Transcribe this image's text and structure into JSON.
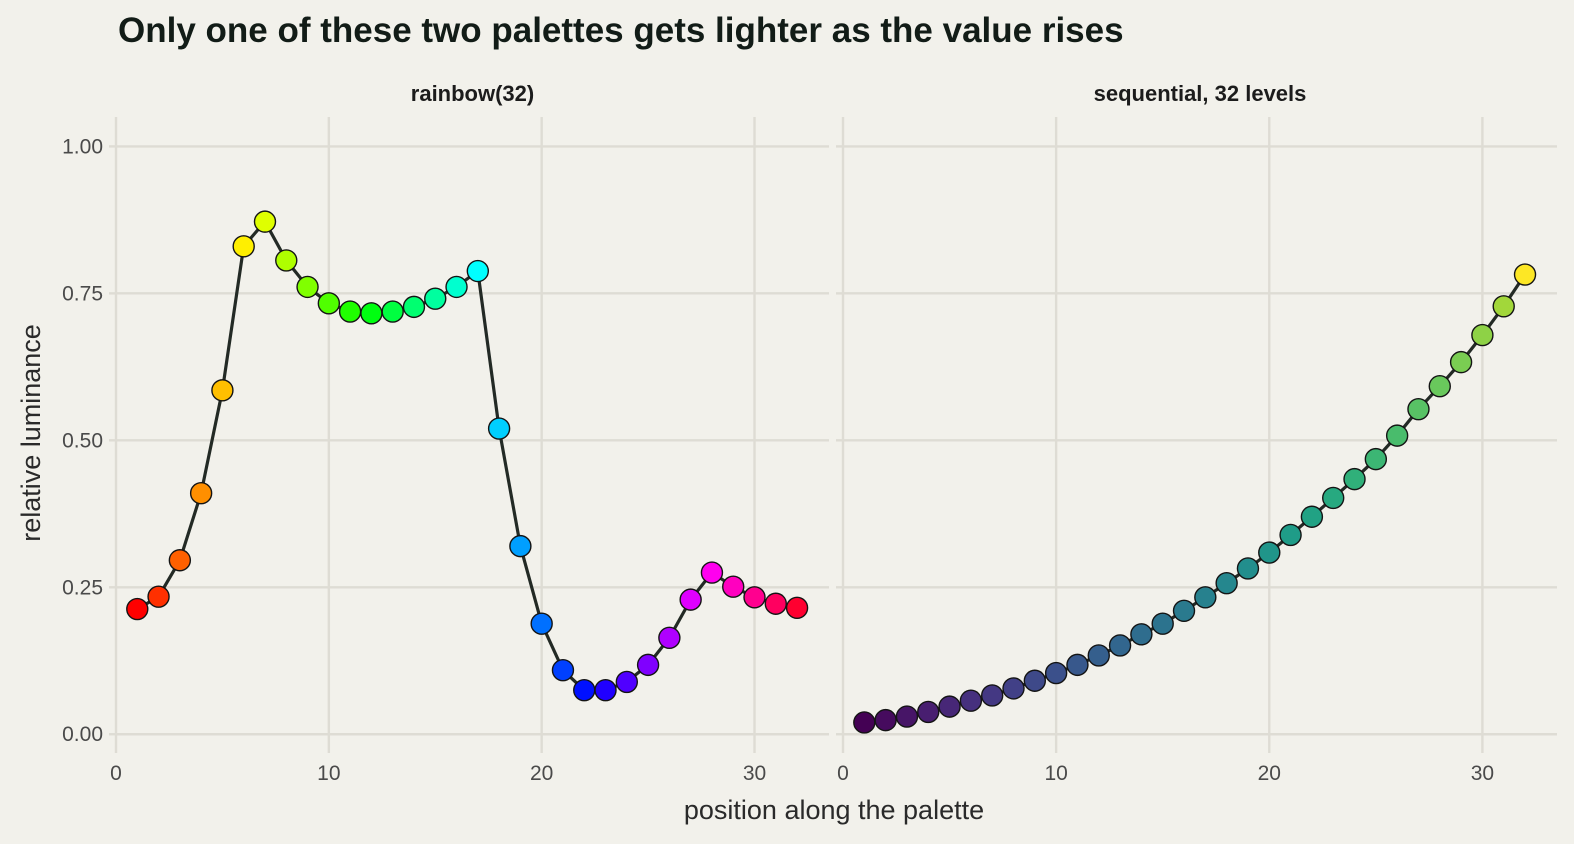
{
  "chart_data": {
    "type": "scatter",
    "title": "Only one of these two palettes gets lighter as the value rises",
    "xlabel": "position along the palette",
    "ylabel": "relative luminance",
    "xlim": [
      0,
      33.5
    ],
    "ylim": [
      -0.02,
      1.05
    ],
    "x_ticks": [
      0,
      10,
      20,
      30
    ],
    "y_ticks": [
      0,
      0.25,
      0.5,
      0.75,
      1.0
    ],
    "x_tick_labels": [
      "0",
      "10",
      "20",
      "30"
    ],
    "y_tick_labels": [
      "0.00",
      "0.25",
      "0.50",
      "0.75",
      "1.00"
    ],
    "grid": true,
    "legend": "none",
    "panels": [
      {
        "label": "rainbow(32)",
        "x": [
          1,
          2,
          3,
          4,
          5,
          6,
          7,
          8,
          9,
          10,
          11,
          12,
          13,
          14,
          15,
          16,
          17,
          18,
          19,
          20,
          21,
          22,
          23,
          24,
          25,
          26,
          27,
          28,
          29,
          30,
          31,
          32
        ],
        "y": [
          0.213,
          0.234,
          0.296,
          0.41,
          0.585,
          0.83,
          0.872,
          0.806,
          0.761,
          0.733,
          0.719,
          0.716,
          0.719,
          0.727,
          0.741,
          0.761,
          0.788,
          0.52,
          0.32,
          0.188,
          0.109,
          0.075,
          0.075,
          0.089,
          0.118,
          0.164,
          0.229,
          0.275,
          0.251,
          0.233,
          0.222,
          0.215
        ],
        "colors": [
          "#FF0000",
          "#FF3000",
          "#FF6000",
          "#FF8F00",
          "#FFBF00",
          "#FFEF00",
          "#DFFF00",
          "#AFFF00",
          "#80FF00",
          "#50FF00",
          "#20FF00",
          "#00FF10",
          "#00FF40",
          "#00FF70",
          "#00FF9F",
          "#00FFCF",
          "#00FFFF",
          "#00CFFF",
          "#009FFF",
          "#0070FF",
          "#0040FF",
          "#0010FF",
          "#2000FF",
          "#5000FF",
          "#8000FF",
          "#AF00FF",
          "#DF00FF",
          "#FF00EF",
          "#FF00BF",
          "#FF008F",
          "#FF0060",
          "#FF0030"
        ]
      },
      {
        "label": "sequential, 32 levels",
        "x": [
          1,
          2,
          3,
          4,
          5,
          6,
          7,
          8,
          9,
          10,
          11,
          12,
          13,
          14,
          15,
          16,
          17,
          18,
          19,
          20,
          21,
          22,
          23,
          24,
          25,
          26,
          27,
          28,
          29,
          30,
          31,
          32
        ],
        "y": [
          0.02,
          0.024,
          0.03,
          0.038,
          0.047,
          0.057,
          0.066,
          0.078,
          0.091,
          0.104,
          0.118,
          0.134,
          0.151,
          0.17,
          0.188,
          0.21,
          0.233,
          0.257,
          0.282,
          0.309,
          0.339,
          0.37,
          0.402,
          0.434,
          0.468,
          0.508,
          0.553,
          0.592,
          0.633,
          0.679,
          0.728,
          0.782
        ],
        "colors": [
          "#440154",
          "#460B5E",
          "#471567",
          "#481E70",
          "#472777",
          "#46307E",
          "#443883",
          "#414087",
          "#3E4989",
          "#3B508B",
          "#38588C",
          "#355F8D",
          "#32668E",
          "#2F6D8E",
          "#2C738E",
          "#2A7A8E",
          "#27818E",
          "#25878E",
          "#228E8D",
          "#20958A",
          "#1F9C88",
          "#21A284",
          "#27A980",
          "#30B07A",
          "#3CB674",
          "#49BC6C",
          "#58C265",
          "#69C85C",
          "#7ACD52",
          "#8ED246",
          "#A2D73A",
          "#FDE725"
        ]
      }
    ]
  }
}
